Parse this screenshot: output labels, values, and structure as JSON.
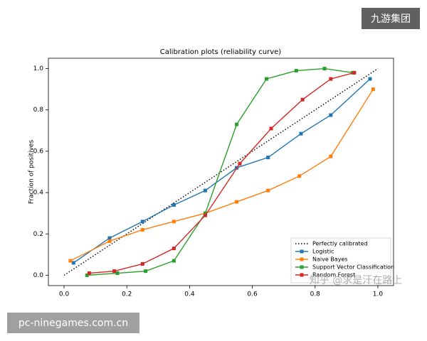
{
  "chart_data": {
    "type": "line",
    "title": "Calibration plots  (reliability curve)",
    "y_label": "Fraction of positives",
    "xlim": [
      -0.05,
      1.05
    ],
    "ylim": [
      -0.05,
      1.05
    ],
    "xticks": [
      {
        "value": 0,
        "label": "0.0"
      },
      0.2,
      0.4,
      0.6,
      0.8,
      {
        "value": 1,
        "label": "1.0"
      }
    ],
    "yticks": [
      {
        "value": 0,
        "label": "0.0"
      },
      0.2,
      0.4,
      0.6,
      0.8,
      {
        "value": 1,
        "label": "1.0"
      }
    ],
    "legend": "lower right",
    "series": [
      {
        "name": "Perfectly calibrated",
        "color": "#000000",
        "style": "dotted",
        "x": [
          0,
          1
        ],
        "values": [
          0,
          1
        ]
      },
      {
        "name": "Logistic",
        "color": "#1f77b4",
        "marker": "square",
        "x": [
          0.03,
          0.145,
          0.25,
          0.35,
          0.45,
          0.55,
          0.65,
          0.755,
          0.85,
          0.975
        ],
        "values": [
          0.06,
          0.18,
          0.26,
          0.34,
          0.41,
          0.52,
          0.57,
          0.685,
          0.775,
          0.95
        ]
      },
      {
        "name": "Naive Bayes",
        "color": "#ff7f0e",
        "marker": "square",
        "x": [
          0.02,
          0.145,
          0.25,
          0.35,
          0.45,
          0.55,
          0.65,
          0.75,
          0.85,
          0.985
        ],
        "values": [
          0.07,
          0.165,
          0.22,
          0.26,
          0.3,
          0.355,
          0.41,
          0.48,
          0.575,
          0.9
        ]
      },
      {
        "name": "Support Vector Classification",
        "color": "#2ca02c",
        "marker": "square",
        "x": [
          0.073,
          0.17,
          0.26,
          0.35,
          0.45,
          0.55,
          0.645,
          0.74,
          0.83,
          0.92
        ],
        "values": [
          0,
          0.01,
          0.02,
          0.07,
          0.3,
          0.73,
          0.95,
          0.99,
          1,
          0.98
        ]
      },
      {
        "name": "Random Forest",
        "color": "#d62728",
        "marker": "square",
        "x": [
          0.08,
          0.16,
          0.25,
          0.35,
          0.45,
          0.56,
          0.66,
          0.76,
          0.85,
          0.925
        ],
        "values": [
          0.01,
          0.02,
          0.055,
          0.13,
          0.29,
          0.54,
          0.71,
          0.85,
          0.95,
          0.98
        ]
      }
    ],
    "watermarks": [
      "九游集团",
      "pc-ninegames.com.cn",
      "知乎 @求是汗在路上"
    ]
  }
}
